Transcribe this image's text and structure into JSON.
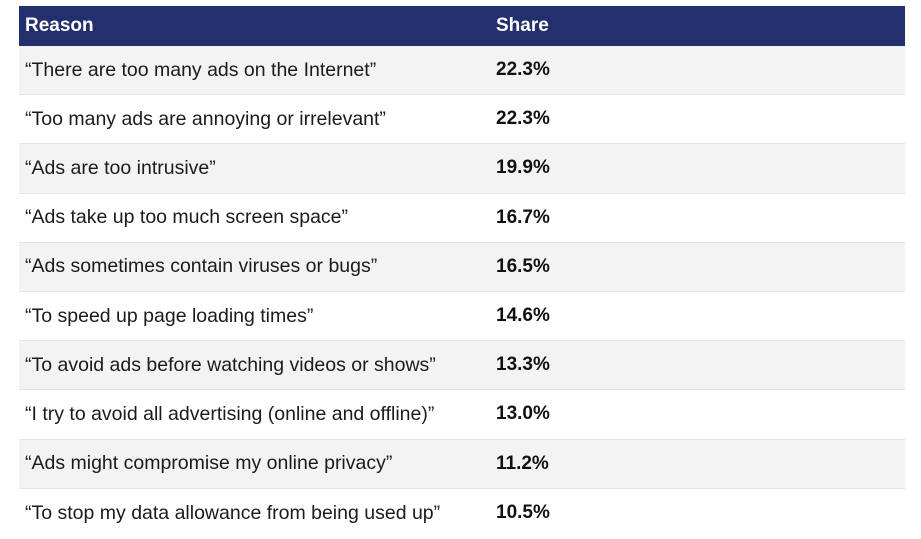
{
  "chart_data": {
    "type": "table",
    "columns": [
      "Reason",
      "Share"
    ],
    "rows": [
      {
        "reason": "“There are too many ads on the Internet”",
        "share": "22.3%"
      },
      {
        "reason": "“Too many ads are annoying or irrelevant”",
        "share": "22.3%"
      },
      {
        "reason": "“Ads are too intrusive”",
        "share": "19.9%"
      },
      {
        "reason": "“Ads take up too much screen space”",
        "share": "16.7%"
      },
      {
        "reason": "“Ads sometimes contain viruses or bugs”",
        "share": "16.5%"
      },
      {
        "reason": "“To speed up page loading times”",
        "share": "14.6%"
      },
      {
        "reason": "“To avoid ads before watching videos or shows”",
        "share": "13.3%"
      },
      {
        "reason": "“I try to avoid all advertising (online and offline)”",
        "share": "13.0%"
      },
      {
        "reason": "“Ads might compromise my online privacy”",
        "share": "11.2%"
      },
      {
        "reason": "“To stop my data allowance from being used up”",
        "share": "10.5%"
      }
    ]
  },
  "colors": {
    "header_bg": "#24306e",
    "header_text": "#ffffff",
    "alt_row_bg": "#f3f3f3",
    "row_bg": "#ffffff"
  }
}
